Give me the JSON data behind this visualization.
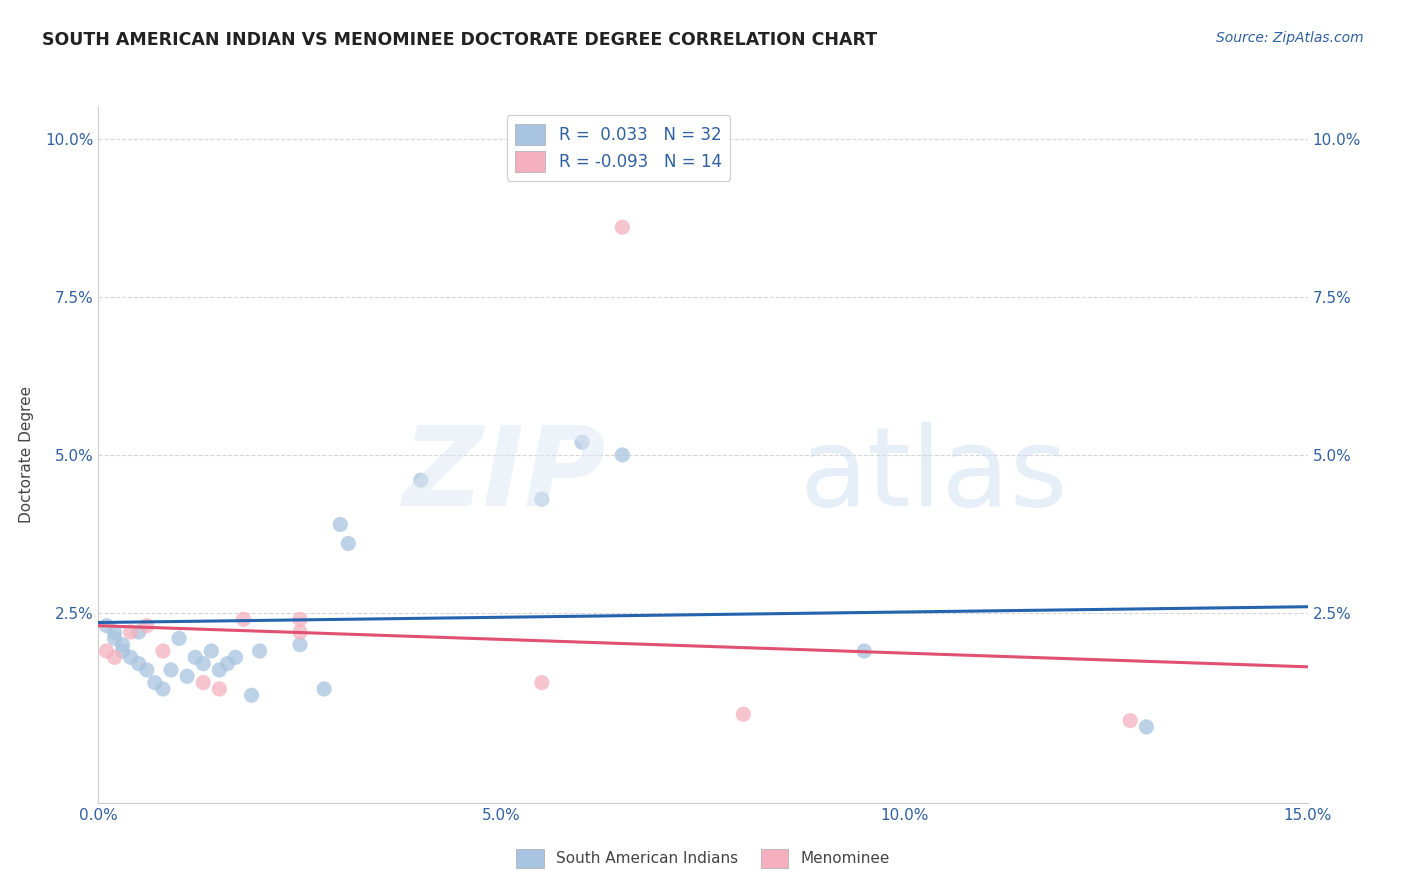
{
  "title": "SOUTH AMERICAN INDIAN VS MENOMINEE DOCTORATE DEGREE CORRELATION CHART",
  "source": "Source: ZipAtlas.com",
  "ylabel": "Doctorate Degree",
  "xlim": [
    0.0,
    0.15
  ],
  "ylim": [
    -0.005,
    0.105
  ],
  "blue_color": "#a8c4e0",
  "blue_line_color": "#2563ae",
  "pink_color": "#f4b0be",
  "pink_line_color": "#e05070",
  "legend_R1": "R =  0.033",
  "legend_N1": "N = 32",
  "legend_R2": "R = -0.093",
  "legend_N2": "N = 14",
  "blue_scatter_x": [
    0.001,
    0.002,
    0.002,
    0.003,
    0.003,
    0.004,
    0.005,
    0.005,
    0.006,
    0.007,
    0.008,
    0.009,
    0.01,
    0.011,
    0.012,
    0.013,
    0.014,
    0.015,
    0.016,
    0.017,
    0.019,
    0.02,
    0.025,
    0.028,
    0.03,
    0.031,
    0.04,
    0.055,
    0.06,
    0.065,
    0.095,
    0.13
  ],
  "blue_scatter_y": [
    0.023,
    0.022,
    0.021,
    0.02,
    0.019,
    0.018,
    0.022,
    0.017,
    0.016,
    0.014,
    0.013,
    0.016,
    0.021,
    0.015,
    0.018,
    0.017,
    0.019,
    0.016,
    0.017,
    0.018,
    0.012,
    0.019,
    0.02,
    0.013,
    0.039,
    0.036,
    0.046,
    0.043,
    0.052,
    0.05,
    0.019,
    0.007
  ],
  "pink_scatter_x": [
    0.001,
    0.002,
    0.004,
    0.006,
    0.008,
    0.013,
    0.015,
    0.018,
    0.025,
    0.025,
    0.055,
    0.065,
    0.08,
    0.128
  ],
  "pink_scatter_y": [
    0.019,
    0.018,
    0.022,
    0.023,
    0.019,
    0.014,
    0.013,
    0.024,
    0.024,
    0.022,
    0.014,
    0.086,
    0.009,
    0.008
  ],
  "blue_trend_x": [
    0.0,
    0.15
  ],
  "blue_trend_y": [
    0.0235,
    0.026
  ],
  "pink_trend_x": [
    0.0,
    0.15
  ],
  "pink_trend_y": [
    0.023,
    0.0165
  ],
  "background_color": "#ffffff",
  "grid_color": "#cccccc",
  "title_color": "#222222",
  "axis_color": "#3060a0",
  "label_color": "#444444"
}
